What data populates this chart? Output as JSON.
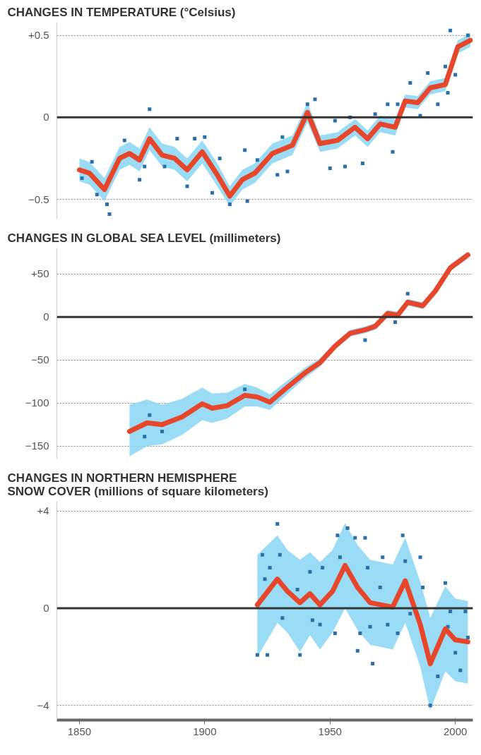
{
  "chart_data": [
    {
      "type": "line",
      "title": "CHANGES IN TEMPERATURE (°Celsius)",
      "xlim": [
        1841,
        2007
      ],
      "ylim": [
        -0.62,
        0.58
      ],
      "yticks": [
        {
          "value": 0.5,
          "label": "+0.5"
        },
        0,
        {
          "value": -0.5,
          "label": "−0.5"
        }
      ],
      "tick_labels": "y",
      "grid": "y",
      "ref_lines": [
        {
          "axis": "y",
          "value": 0,
          "color": "#333333"
        }
      ],
      "series": [
        {
          "type": "line",
          "color": "#e8462a",
          "x": [
            1850,
            1854,
            1860,
            1866,
            1870,
            1874,
            1878,
            1883,
            1888,
            1893,
            1899,
            1905,
            1910,
            1915,
            1920,
            1927,
            1935,
            1941,
            1946,
            1953,
            1960,
            1965,
            1970,
            1976,
            1980,
            1985,
            1990,
            1996,
            2001,
            2006
          ],
          "values": [
            -0.32,
            -0.34,
            -0.44,
            -0.25,
            -0.22,
            -0.26,
            -0.13,
            -0.23,
            -0.25,
            -0.32,
            -0.21,
            -0.35,
            -0.48,
            -0.38,
            -0.34,
            -0.22,
            -0.17,
            0.03,
            -0.16,
            -0.14,
            -0.06,
            -0.13,
            -0.04,
            -0.06,
            0.1,
            0.09,
            0.18,
            0.2,
            0.43,
            0.47
          ],
          "lower": [
            -0.39,
            -0.41,
            -0.51,
            -0.32,
            -0.29,
            -0.33,
            -0.2,
            -0.3,
            -0.32,
            -0.39,
            -0.28,
            -0.42,
            -0.54,
            -0.44,
            -0.4,
            -0.28,
            -0.23,
            -0.03,
            -0.21,
            -0.19,
            -0.11,
            -0.18,
            -0.09,
            -0.11,
            0.06,
            0.05,
            0.14,
            0.16,
            0.39,
            0.43
          ],
          "upper": [
            -0.25,
            -0.27,
            -0.37,
            -0.18,
            -0.15,
            -0.19,
            -0.06,
            -0.16,
            -0.18,
            -0.25,
            -0.14,
            -0.28,
            -0.42,
            -0.32,
            -0.28,
            -0.16,
            -0.11,
            0.09,
            -0.11,
            -0.09,
            -0.01,
            -0.08,
            0.01,
            -0.01,
            0.14,
            0.13,
            0.22,
            0.24,
            0.47,
            0.51
          ]
        },
        {
          "type": "scatter",
          "color": "#2a6fa8",
          "x": [
            1851,
            1855,
            1857,
            1861,
            1862,
            1868,
            1874,
            1876,
            1878,
            1884,
            1889,
            1893,
            1896,
            1900,
            1903,
            1906,
            1910,
            1916,
            1917,
            1921,
            1929,
            1931,
            1933,
            1941,
            1944,
            1950,
            1952,
            1956,
            1958,
            1963,
            1968,
            1973,
            1975,
            1977,
            1982,
            1986,
            1989,
            1993,
            1996,
            1997,
            1998,
            2000,
            2005
          ],
          "values": [
            -0.37,
            -0.27,
            -0.47,
            -0.53,
            -0.59,
            -0.14,
            -0.38,
            -0.3,
            0.05,
            -0.3,
            -0.13,
            -0.42,
            -0.13,
            -0.12,
            -0.46,
            -0.25,
            -0.53,
            -0.2,
            -0.51,
            -0.26,
            -0.35,
            -0.12,
            -0.33,
            0.08,
            0.11,
            -0.31,
            -0.02,
            -0.3,
            0.0,
            -0.28,
            0.02,
            0.08,
            -0.21,
            0.08,
            0.21,
            0.01,
            0.27,
            0.08,
            0.31,
            0.15,
            0.53,
            0.26,
            0.5
          ]
        }
      ]
    },
    {
      "type": "line",
      "title": "CHANGES IN GLOBAL SEA LEVEL (millimeters)",
      "xlim": [
        1841,
        2007
      ],
      "ylim": [
        -165,
        80
      ],
      "yticks": [
        {
          "value": 50,
          "label": "+50"
        },
        0,
        {
          "value": -50,
          "label": "−50"
        },
        {
          "value": -100,
          "label": "−100"
        },
        {
          "value": -150,
          "label": "−150"
        }
      ],
      "tick_labels": "y",
      "grid": "y",
      "ref_lines": [
        {
          "axis": "y",
          "value": 0,
          "color": "#333333"
        }
      ],
      "series": [
        {
          "type": "line",
          "color": "#e8462a",
          "x": [
            1870,
            1877,
            1883,
            1891,
            1899,
            1903,
            1909,
            1916,
            1921,
            1926,
            1932,
            1940,
            1946,
            1952,
            1958,
            1964,
            1968,
            1973,
            1977,
            1981,
            1987,
            1992,
            1998,
            2005
          ],
          "values": [
            -133,
            -123,
            -125,
            -116,
            -101,
            -106,
            -103,
            -91,
            -93,
            -99,
            -84,
            -65,
            -53,
            -34,
            -19,
            -15,
            -11,
            4,
            2,
            17,
            13,
            30,
            57,
            72
          ],
          "lower": [
            -162,
            -150,
            -148,
            -137,
            -120,
            -123,
            -118,
            -104,
            -104,
            -108,
            -92,
            -71,
            -58,
            -38,
            -23,
            -19,
            -15,
            0,
            -2,
            13,
            9,
            26,
            53,
            68
          ],
          "upper": [
            -102,
            -96,
            -102,
            -95,
            -82,
            -89,
            -88,
            -78,
            -82,
            -90,
            -76,
            -59,
            -48,
            -30,
            -15,
            -11,
            -7,
            8,
            6,
            21,
            17,
            34,
            61,
            76
          ]
        },
        {
          "type": "scatter",
          "color": "#2a6fa8",
          "x": [
            1876,
            1878,
            1883,
            1916,
            1964,
            1976,
            1981
          ],
          "values": [
            -139,
            -114,
            -133,
            -84,
            -27,
            -6,
            27
          ]
        }
      ]
    },
    {
      "type": "line",
      "title": "CHANGES IN NORTHERN HEMISPHERE\nSNOW COVER (millions of square kilometers)",
      "xlim": [
        1841,
        2007
      ],
      "ylim": [
        -4.6,
        4.4
      ],
      "yticks": [
        {
          "value": 4,
          "label": "+4"
        },
        0,
        {
          "value": -4,
          "label": "−4"
        }
      ],
      "xticks": [
        1850,
        1900,
        1950,
        2000
      ],
      "grid": "y",
      "ref_lines": [
        {
          "axis": "y",
          "value": 0,
          "color": "#333333"
        }
      ],
      "series": [
        {
          "type": "line",
          "color": "#e8462a",
          "x": [
            1921,
            1929,
            1933,
            1938,
            1942,
            1946,
            1951,
            1956,
            1961,
            1966,
            1975,
            1980,
            1986,
            1990,
            1996,
            2000,
            2005
          ],
          "values": [
            0.14,
            1.2,
            0.7,
            0.23,
            0.6,
            0.14,
            0.7,
            1.76,
            0.86,
            0.23,
            0.05,
            1.13,
            -0.67,
            -2.28,
            -0.85,
            -1.3,
            -1.38
          ],
          "lower": [
            -2.0,
            -0.6,
            -1.0,
            -1.8,
            -1.1,
            -1.7,
            -1.0,
            0.0,
            -0.9,
            -1.5,
            -1.7,
            -0.6,
            -2.4,
            -4.2,
            -2.6,
            -3.0,
            -3.1
          ],
          "upper": [
            2.2,
            3.0,
            2.4,
            2.0,
            2.3,
            1.9,
            2.4,
            3.5,
            2.6,
            2.0,
            1.8,
            2.9,
            1.1,
            -0.4,
            0.9,
            0.4,
            0.3
          ]
        },
        {
          "type": "scatter",
          "color": "#2a6fa8",
          "x": [
            1921,
            1925,
            1923,
            1924,
            1926,
            1929,
            1930,
            1931,
            1937,
            1938,
            1942,
            1943,
            1946,
            1947,
            1952,
            1953,
            1954,
            1957,
            1960,
            1961,
            1962,
            1964,
            1965,
            1966,
            1967,
            1970,
            1971,
            1973,
            1977,
            1979,
            1980,
            1982,
            1986,
            1987,
            1990,
            1993,
            1996,
            1997,
            1998,
            2000,
            2002,
            2004,
            2005
          ],
          "values": [
            -1.92,
            -1.92,
            2.2,
            1.2,
            1.67,
            3.47,
            2.2,
            -0.4,
            0.77,
            -1.92,
            1.5,
            -0.49,
            -0.67,
            1.67,
            -1.03,
            3.0,
            2.1,
            3.3,
            2.9,
            -1.75,
            -1.03,
            2.9,
            1.67,
            -0.76,
            -2.28,
            0.86,
            2.1,
            -0.67,
            -1.03,
            3.0,
            1.94,
            -0.22,
            2.1,
            0.86,
            -4.0,
            -2.8,
            1.04,
            -0.76,
            -0.13,
            -1.83,
            -2.55,
            -0.13,
            -1.2
          ]
        }
      ]
    }
  ]
}
